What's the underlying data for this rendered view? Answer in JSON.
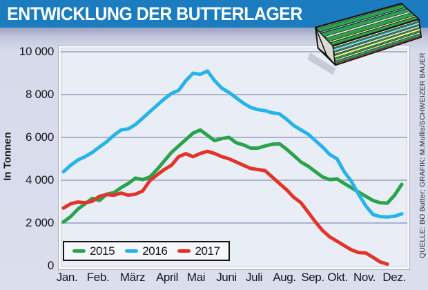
{
  "title": "ENTWICKLUNG DER BUTTERLAGER",
  "source_caption": "QUELLE: BO Butter; GRAFIK: M.Mullis/SCHWEIZER BAUER",
  "colors": {
    "titlebar_blue": "#1b7cc0",
    "plot_background": "#e9edf6",
    "gridline": "#98a0ba",
    "series_2015": "#2aa34d",
    "series_2016": "#25b4e9",
    "series_2017": "#e1342a"
  },
  "axis": {
    "ylabel": "In Tonnen",
    "yticks": [
      {
        "value": 10000,
        "label": "10 000"
      },
      {
        "value": 8000,
        "label": "8 000"
      },
      {
        "value": 6000,
        "label": "6 000"
      },
      {
        "value": 4000,
        "label": "4 000"
      },
      {
        "value": 2000,
        "label": "2 000"
      },
      {
        "value": 0,
        "label": "0"
      }
    ],
    "months": [
      "Jan.",
      "Feb.",
      "März",
      "April",
      "Mai",
      "Juni",
      "Juli",
      "Aug.",
      "Sep.",
      "Okt.",
      "Nov.",
      "Dez."
    ]
  },
  "legend": [
    {
      "label": "2015",
      "color": "#2aa34d"
    },
    {
      "label": "2016",
      "color": "#25b4e9"
    },
    {
      "label": "2017",
      "color": "#e1342a"
    }
  ],
  "icons": {
    "butter_pack": "butter-package-illustration"
  },
  "chart_data": {
    "type": "line",
    "title": "ENTWICKLUNG DER BUTTERLAGER",
    "ylabel": "In Tonnen",
    "ylim": [
      0,
      10000
    ],
    "grid": "horizontal gridlines every 2000 t",
    "legend_position": "bottom-left inside plot",
    "categories": [
      "Jan.",
      "Feb.",
      "März",
      "April",
      "Mai",
      "Juni",
      "Juli",
      "Aug.",
      "Sep.",
      "Okt.",
      "Nov.",
      "Dez."
    ],
    "x_sampling": "approx. weekly, 4 points per month (values in tonnes, estimated from gridlines)",
    "series": [
      {
        "name": "2015",
        "color": "#2aa34d",
        "values": [
          2050,
          2300,
          2650,
          2900,
          3150,
          3050,
          3350,
          3420,
          3650,
          3850,
          4100,
          4030,
          4150,
          4500,
          4900,
          5300,
          5600,
          5900,
          6200,
          6350,
          6100,
          5850,
          5950,
          6000,
          5750,
          5650,
          5500,
          5500,
          5600,
          5680,
          5700,
          5450,
          5150,
          4850,
          4650,
          4400,
          4150,
          4030,
          4060,
          3850,
          3650,
          3450,
          3250,
          3050,
          2950,
          2930,
          3300,
          3810
        ]
      },
      {
        "name": "2016",
        "color": "#25b4e9",
        "values": [
          4400,
          4700,
          4950,
          5100,
          5300,
          5550,
          5800,
          6100,
          6350,
          6400,
          6600,
          6900,
          7200,
          7500,
          7800,
          8050,
          8200,
          8650,
          9000,
          8950,
          9100,
          8650,
          8300,
          8100,
          7850,
          7600,
          7400,
          7300,
          7250,
          7150,
          7100,
          6850,
          6550,
          6350,
          6150,
          5850,
          5550,
          5200,
          5000,
          4400,
          3950,
          3350,
          2800,
          2400,
          2300,
          2280,
          2320,
          2430
        ]
      },
      {
        "name": "2017",
        "color": "#e1342a",
        "note": "series ends in early December",
        "values": [
          2700,
          2900,
          2980,
          2950,
          3020,
          3250,
          3330,
          3300,
          3400,
          3300,
          3350,
          3500,
          3980,
          4250,
          4500,
          4700,
          5100,
          5240,
          5100,
          5250,
          5350,
          5250,
          5100,
          5000,
          4850,
          4700,
          4550,
          4500,
          4450,
          4150,
          3850,
          3550,
          3200,
          2950,
          2500,
          2050,
          1650,
          1350,
          1150,
          950,
          750,
          620,
          600,
          400,
          180,
          80
        ]
      }
    ]
  }
}
